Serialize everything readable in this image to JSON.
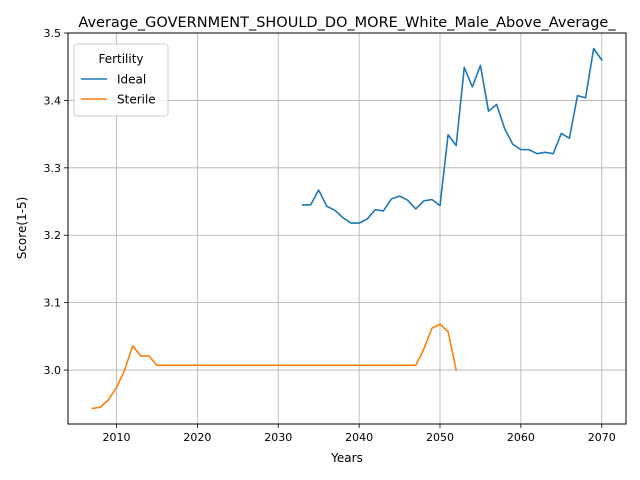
{
  "chart_data": {
    "type": "line",
    "title": "Average_GOVERNMENT_SHOULD_DO_MORE_White_Male_Above_Average_",
    "xlabel": "Years",
    "ylabel": "Score(1-5)",
    "xlim": [
      2004,
      2073
    ],
    "ylim": [
      2.92,
      3.5
    ],
    "xticks": [
      2010,
      2020,
      2030,
      2040,
      2050,
      2060,
      2070
    ],
    "yticks": [
      3.0,
      3.1,
      3.2,
      3.3,
      3.4,
      3.5
    ],
    "xtick_labels": [
      "2010",
      "2020",
      "2030",
      "2040",
      "2050",
      "2060",
      "2070"
    ],
    "ytick_labels": [
      "3.0",
      "3.1",
      "3.2",
      "3.3",
      "3.4",
      "3.5"
    ],
    "grid": true,
    "legend": {
      "title": "Fertility",
      "position": "top-left"
    },
    "series": [
      {
        "name": "Ideal",
        "color": "#1f77b4",
        "x": [
          2033,
          2034,
          2035,
          2036,
          2037,
          2038,
          2039,
          2040,
          2041,
          2042,
          2043,
          2044,
          2045,
          2046,
          2047,
          2048,
          2049,
          2050,
          2051,
          2052,
          2053,
          2054,
          2055,
          2056,
          2057,
          2058,
          2059,
          2060,
          2061,
          2062,
          2063,
          2064,
          2065,
          2066,
          2067,
          2068,
          2069,
          2070
        ],
        "y": [
          3.245,
          3.245,
          3.267,
          3.243,
          3.237,
          3.226,
          3.218,
          3.218,
          3.224,
          3.238,
          3.236,
          3.254,
          3.258,
          3.252,
          3.239,
          3.251,
          3.253,
          3.244,
          3.349,
          3.333,
          3.449,
          3.42,
          3.452,
          3.384,
          3.394,
          3.358,
          3.335,
          3.327,
          3.327,
          3.321,
          3.323,
          3.321,
          3.351,
          3.344,
          3.407,
          3.404,
          3.477,
          3.46
        ]
      },
      {
        "name": "Sterile",
        "color": "#ff7f0e",
        "x": [
          2007,
          2008,
          2009,
          2010,
          2011,
          2012,
          2013,
          2014,
          2015,
          2016,
          2017,
          2018,
          2019,
          2020,
          2021,
          2022,
          2023,
          2024,
          2025,
          2026,
          2027,
          2028,
          2029,
          2030,
          2031,
          2032,
          2033,
          2034,
          2035,
          2036,
          2037,
          2038,
          2039,
          2040,
          2041,
          2042,
          2043,
          2044,
          2045,
          2046,
          2047,
          2048,
          2049,
          2050,
          2051,
          2052
        ],
        "y": [
          2.943,
          2.945,
          2.956,
          2.974,
          3.0,
          3.036,
          3.021,
          3.021,
          3.007,
          3.007,
          3.007,
          3.007,
          3.007,
          3.007,
          3.007,
          3.007,
          3.007,
          3.007,
          3.007,
          3.007,
          3.007,
          3.007,
          3.007,
          3.007,
          3.007,
          3.007,
          3.007,
          3.007,
          3.007,
          3.007,
          3.007,
          3.007,
          3.007,
          3.007,
          3.007,
          3.007,
          3.007,
          3.007,
          3.007,
          3.007,
          3.007,
          3.031,
          3.062,
          3.068,
          3.057,
          3.0
        ]
      }
    ]
  }
}
